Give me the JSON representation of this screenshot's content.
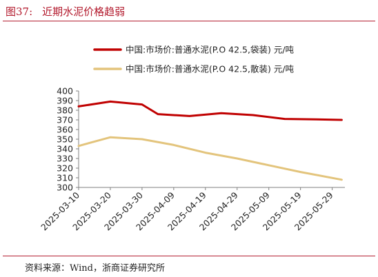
{
  "figure": {
    "label": "图37:",
    "title": "近期水泥价格趋弱",
    "source": "资料来源：Wind，浙商证券研究所"
  },
  "colors": {
    "accent": "#b2182b",
    "series_bagged": "#c00000",
    "series_bulk": "#e3c47c",
    "axis": "#7f7f7f"
  },
  "chart_data": {
    "type": "line",
    "title": "",
    "xlabel": "",
    "ylabel": "",
    "x": [
      "2025-03-10",
      "2025-03-20",
      "2025-03-30",
      "2025-04-09",
      "2025-04-19",
      "2025-04-29",
      "2025-05-09",
      "2025-05-19",
      "2025-05-29"
    ],
    "ylim": [
      300,
      400
    ],
    "yticks": [
      300,
      310,
      320,
      330,
      340,
      350,
      360,
      370,
      380,
      390,
      400
    ],
    "grid": false,
    "legend_position": "top",
    "series": [
      {
        "name": "中国:市场价:普通水泥(P.O 42.5,袋装) 元/吨",
        "color": "#c00000",
        "points": [
          [
            "2025-03-10",
            384
          ],
          [
            "2025-03-20",
            389
          ],
          [
            "2025-03-30",
            386
          ],
          [
            "2025-04-04",
            376
          ],
          [
            "2025-04-14",
            374
          ],
          [
            "2025-04-24",
            377
          ],
          [
            "2025-05-04",
            375
          ],
          [
            "2025-05-14",
            371
          ],
          [
            "2025-05-24",
            370.5
          ],
          [
            "2025-06-01",
            370
          ]
        ]
      },
      {
        "name": "中国:市场价:普通水泥(P.O 42.5,散装) 元/吨",
        "color": "#e3c47c",
        "points": [
          [
            "2025-03-10",
            343
          ],
          [
            "2025-03-20",
            352
          ],
          [
            "2025-03-30",
            350
          ],
          [
            "2025-04-09",
            344
          ],
          [
            "2025-04-19",
            336
          ],
          [
            "2025-04-29",
            330
          ],
          [
            "2025-05-09",
            323
          ],
          [
            "2025-05-19",
            316
          ],
          [
            "2025-06-01",
            308
          ]
        ]
      }
    ]
  }
}
